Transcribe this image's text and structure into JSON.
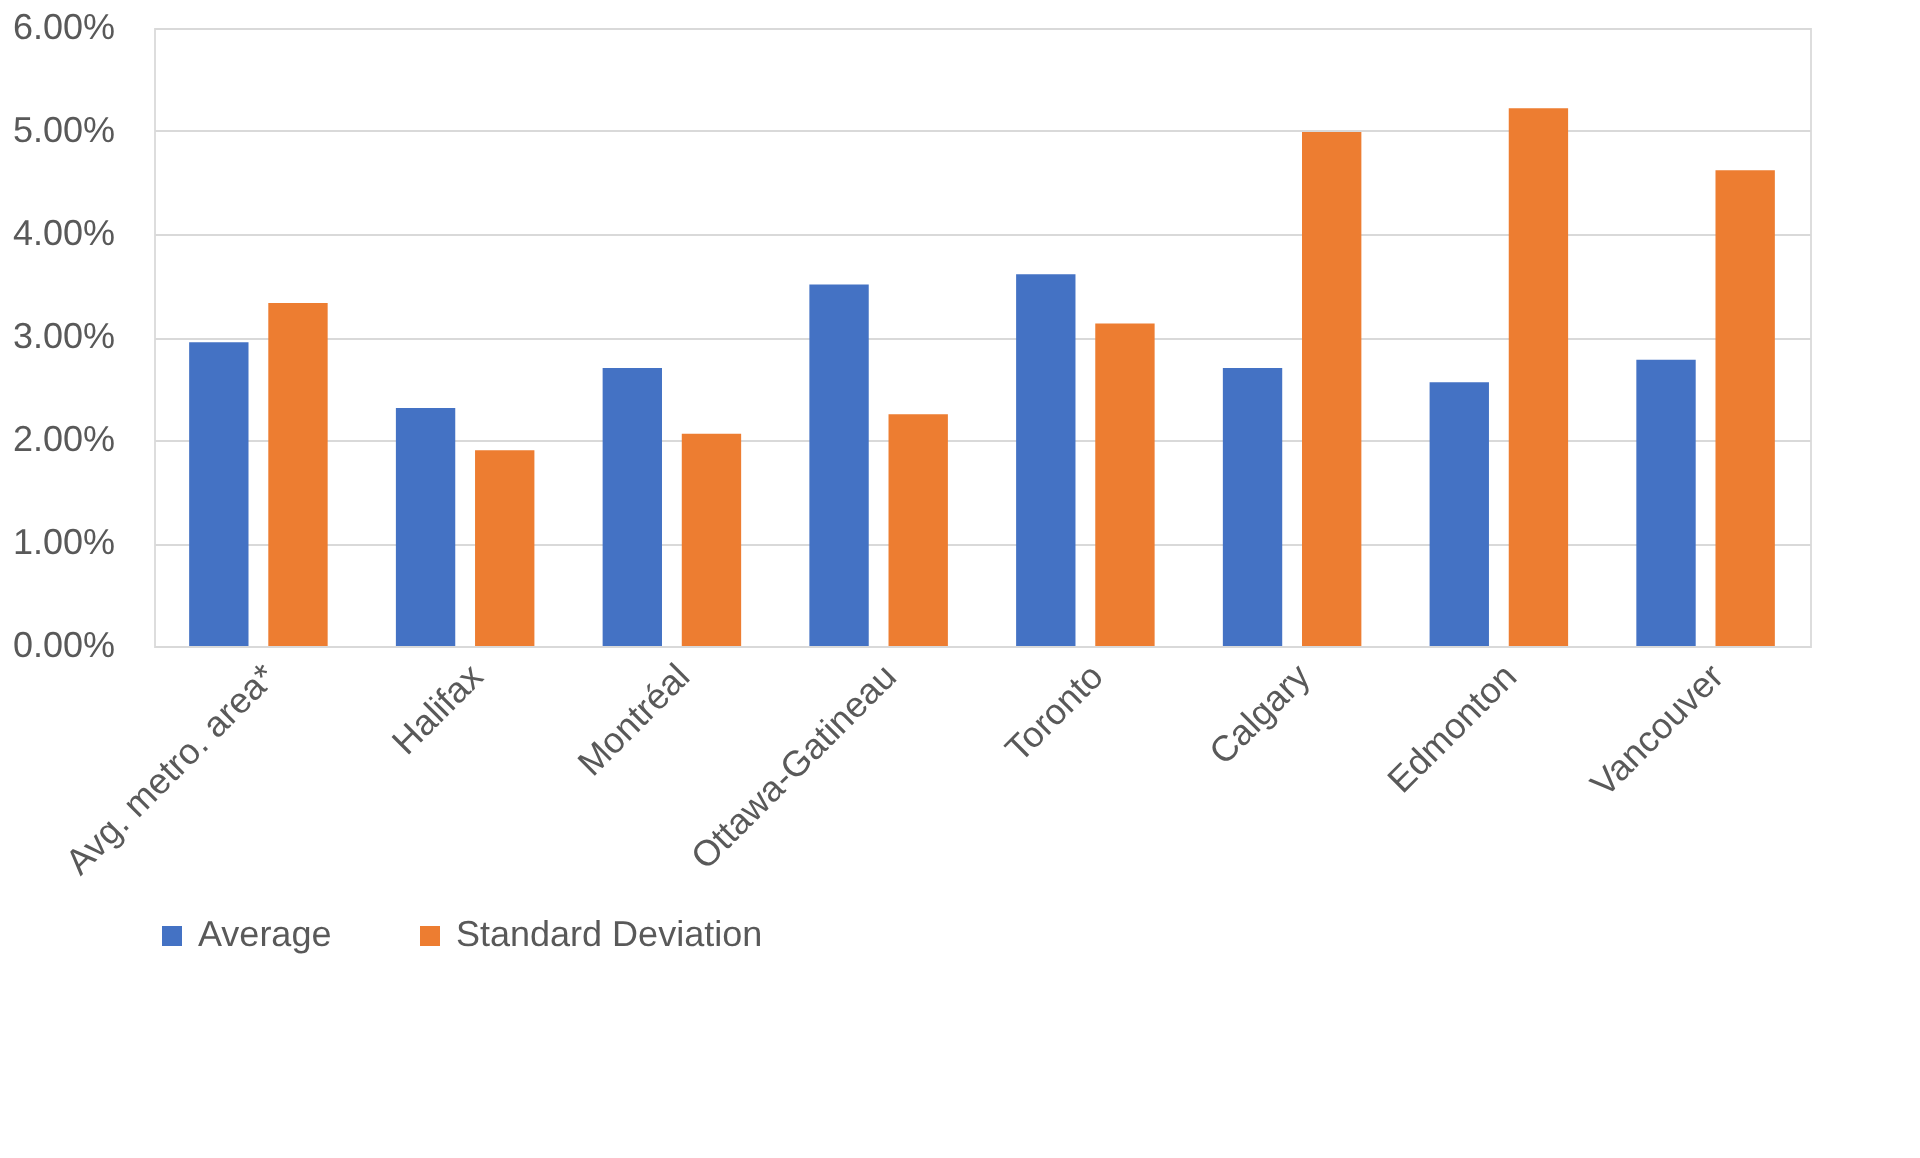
{
  "chart_data": {
    "type": "bar",
    "categories": [
      "Avg. metro. area*",
      "Halifax",
      "Montréal",
      "Ottawa-Gatineau",
      "Toronto",
      "Calgary",
      "Edmonton",
      "Vancouver"
    ],
    "series": [
      {
        "name": "Average",
        "color": "#4472c4",
        "values": [
          2.95,
          2.31,
          2.7,
          3.51,
          3.61,
          2.7,
          2.56,
          2.78
        ]
      },
      {
        "name": "Standard Deviation",
        "color": "#ed7d31",
        "values": [
          3.33,
          1.9,
          2.06,
          2.25,
          3.13,
          4.99,
          5.22,
          4.62
        ]
      }
    ],
    "ylim": [
      0,
      6
    ],
    "yticks": [
      {
        "value": 0,
        "label": "0.00%"
      },
      {
        "value": 1,
        "label": "1.00%"
      },
      {
        "value": 2,
        "label": "2.00%"
      },
      {
        "value": 3,
        "label": "3.00%"
      },
      {
        "value": 4,
        "label": "4.00%"
      },
      {
        "value": 5,
        "label": "5.00%"
      },
      {
        "value": 6,
        "label": "6.00%"
      }
    ],
    "grid": "y",
    "legend": "bottom"
  }
}
